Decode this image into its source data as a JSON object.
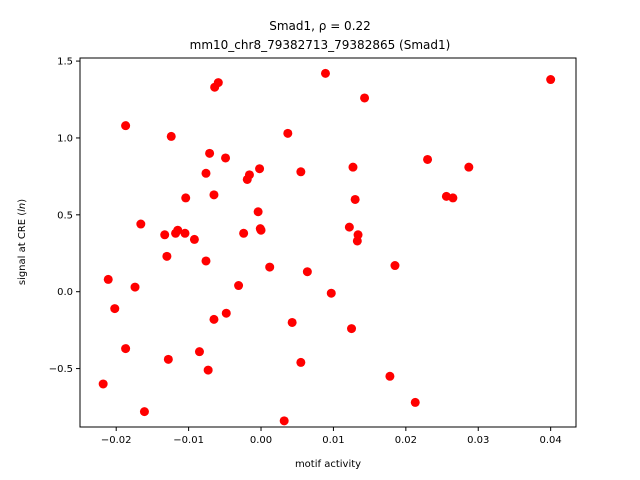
{
  "chart_data": {
    "type": "scatter",
    "title_line1": "Smad1, ρ = 0.22",
    "title_line2": "mm10_chr8_79382713_79382865 (Smad1)",
    "xlabel": "motif activity",
    "ylabel": "signal at CRE (ln)",
    "xlim": [
      -0.025,
      0.0435
    ],
    "ylim": [
      -0.88,
      1.52
    ],
    "xticks": [
      -0.02,
      -0.01,
      0.0,
      0.01,
      0.02,
      0.03,
      0.04
    ],
    "xtick_labels": [
      "−0.02",
      "−0.01",
      "0.00",
      "0.01",
      "0.02",
      "0.03",
      "0.04"
    ],
    "yticks": [
      -0.5,
      0.0,
      0.5,
      1.0,
      1.5
    ],
    "ytick_labels": [
      "−0.5",
      "0.0",
      "0.5",
      "1.0",
      "1.5"
    ],
    "grid": false,
    "marker_color": "#ff0000",
    "points": [
      {
        "x": 0.04,
        "y": 1.38
      },
      {
        "x": 0.0089,
        "y": 1.42
      },
      {
        "x": 0.0143,
        "y": 1.26
      },
      {
        "x": -0.0059,
        "y": 1.36
      },
      {
        "x": -0.0064,
        "y": 1.33
      },
      {
        "x": -0.0187,
        "y": 1.08
      },
      {
        "x": -0.0124,
        "y": 1.01
      },
      {
        "x": 0.0037,
        "y": 1.03
      },
      {
        "x": -0.0071,
        "y": 0.9
      },
      {
        "x": -0.0049,
        "y": 0.87
      },
      {
        "x": 0.023,
        "y": 0.86
      },
      {
        "x": 0.0287,
        "y": 0.81
      },
      {
        "x": 0.0127,
        "y": 0.81
      },
      {
        "x": -0.0002,
        "y": 0.8
      },
      {
        "x": 0.0055,
        "y": 0.78
      },
      {
        "x": -0.0076,
        "y": 0.77
      },
      {
        "x": -0.0016,
        "y": 0.76
      },
      {
        "x": -0.0019,
        "y": 0.73
      },
      {
        "x": -0.0065,
        "y": 0.63
      },
      {
        "x": -0.0104,
        "y": 0.61
      },
      {
        "x": 0.0256,
        "y": 0.62
      },
      {
        "x": 0.0265,
        "y": 0.61
      },
      {
        "x": 0.013,
        "y": 0.6
      },
      {
        "x": -0.0004,
        "y": 0.52
      },
      {
        "x": -0.0166,
        "y": 0.44
      },
      {
        "x": 0.0122,
        "y": 0.42
      },
      {
        "x": -0.0001,
        "y": 0.41
      },
      {
        "x": 0.0,
        "y": 0.4
      },
      {
        "x": -0.0115,
        "y": 0.4
      },
      {
        "x": -0.0118,
        "y": 0.38
      },
      {
        "x": -0.0105,
        "y": 0.38
      },
      {
        "x": -0.0024,
        "y": 0.38
      },
      {
        "x": -0.0133,
        "y": 0.37
      },
      {
        "x": 0.0134,
        "y": 0.37
      },
      {
        "x": -0.0092,
        "y": 0.34
      },
      {
        "x": 0.0133,
        "y": 0.33
      },
      {
        "x": -0.013,
        "y": 0.23
      },
      {
        "x": -0.0076,
        "y": 0.2
      },
      {
        "x": 0.0185,
        "y": 0.17
      },
      {
        "x": 0.0012,
        "y": 0.16
      },
      {
        "x": 0.0064,
        "y": 0.13
      },
      {
        "x": -0.0211,
        "y": 0.08
      },
      {
        "x": -0.0031,
        "y": 0.04
      },
      {
        "x": -0.0174,
        "y": 0.03
      },
      {
        "x": 0.0097,
        "y": -0.01
      },
      {
        "x": -0.0202,
        "y": -0.11
      },
      {
        "x": -0.0048,
        "y": -0.14
      },
      {
        "x": -0.0065,
        "y": -0.18
      },
      {
        "x": 0.0043,
        "y": -0.2
      },
      {
        "x": 0.0125,
        "y": -0.24
      },
      {
        "x": -0.0187,
        "y": -0.37
      },
      {
        "x": -0.0085,
        "y": -0.39
      },
      {
        "x": -0.0128,
        "y": -0.44
      },
      {
        "x": 0.0055,
        "y": -0.46
      },
      {
        "x": -0.0073,
        "y": -0.51
      },
      {
        "x": 0.0178,
        "y": -0.55
      },
      {
        "x": -0.0218,
        "y": -0.6
      },
      {
        "x": 0.0213,
        "y": -0.72
      },
      {
        "x": -0.0161,
        "y": -0.78
      },
      {
        "x": 0.0032,
        "y": -0.84
      }
    ]
  }
}
